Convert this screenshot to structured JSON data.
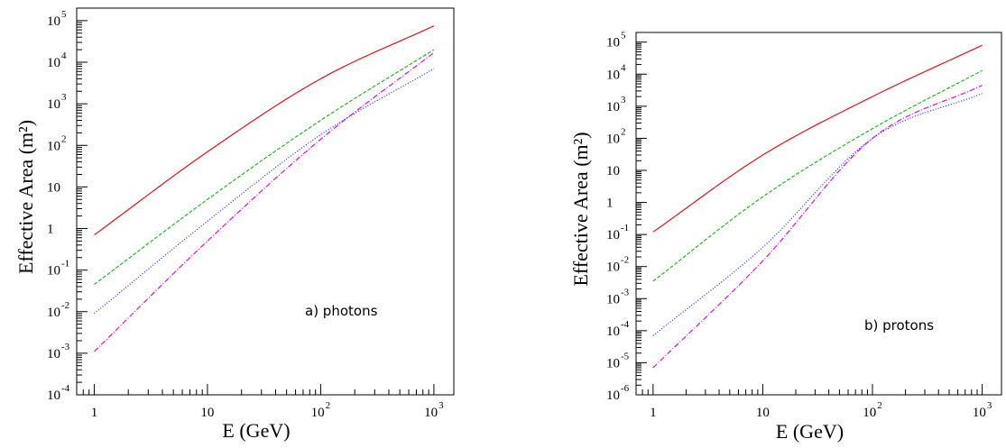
{
  "chart_data": [
    {
      "type": "line",
      "panel_label": "a) photons",
      "xlabel": "E (GeV)",
      "ylabel": "Effective Area (m²)",
      "xscale": "log",
      "yscale": "log",
      "xlim": [
        0.7,
        1500
      ],
      "ylim": [
        0.0001,
        200000
      ],
      "x_ticks": [
        {
          "base": "1",
          "exp": ""
        },
        {
          "base": "10",
          "exp": ""
        },
        {
          "base": "10",
          "exp": "2"
        },
        {
          "base": "10",
          "exp": "3"
        }
      ],
      "y_ticks": [
        {
          "base": "10",
          "exp": "-4"
        },
        {
          "base": "10",
          "exp": "-3"
        },
        {
          "base": "10",
          "exp": "-2"
        },
        {
          "base": "10",
          "exp": "-1"
        },
        {
          "base": "1",
          "exp": ""
        },
        {
          "base": "10",
          "exp": ""
        },
        {
          "base": "10",
          "exp": "2"
        },
        {
          "base": "10",
          "exp": "3"
        },
        {
          "base": "10",
          "exp": "4"
        },
        {
          "base": "10",
          "exp": "5"
        }
      ],
      "x": [
        1,
        10,
        100,
        1000
      ],
      "series": [
        {
          "color": "#e0141e",
          "style": "solid",
          "values": [
            0.7,
            70,
            4000,
            75000
          ]
        },
        {
          "color": "#22b422",
          "style": "dashed",
          "values": [
            0.045,
            5,
            400,
            20000
          ]
        },
        {
          "color": "#1428c8",
          "style": "dotted",
          "values": [
            0.009,
            1.5,
            180,
            7000
          ]
        },
        {
          "color": "#d214d2",
          "style": "dashdot",
          "values": [
            0.0011,
            0.5,
            140,
            17000
          ]
        }
      ]
    },
    {
      "type": "line",
      "panel_label": "b) protons",
      "xlabel": "E (GeV)",
      "ylabel": "Effective Area (m²)",
      "xscale": "log",
      "yscale": "log",
      "xlim": [
        0.7,
        1500
      ],
      "ylim": [
        1e-06,
        200000
      ],
      "x_ticks": [
        {
          "base": "1",
          "exp": ""
        },
        {
          "base": "10",
          "exp": ""
        },
        {
          "base": "10",
          "exp": "2"
        },
        {
          "base": "10",
          "exp": "3"
        }
      ],
      "y_ticks": [
        {
          "base": "10",
          "exp": "-6"
        },
        {
          "base": "10",
          "exp": "-5"
        },
        {
          "base": "10",
          "exp": "-4"
        },
        {
          "base": "10",
          "exp": "-3"
        },
        {
          "base": "10",
          "exp": "-2"
        },
        {
          "base": "10",
          "exp": "-1"
        },
        {
          "base": "1",
          "exp": ""
        },
        {
          "base": "10",
          "exp": ""
        },
        {
          "base": "10",
          "exp": "2"
        },
        {
          "base": "10",
          "exp": "3"
        },
        {
          "base": "10",
          "exp": "4"
        },
        {
          "base": "10",
          "exp": "5"
        }
      ],
      "x": [
        1,
        10,
        100,
        1000
      ],
      "series": [
        {
          "color": "#e0141e",
          "style": "solid",
          "values": [
            0.12,
            30,
            2000,
            80000
          ]
        },
        {
          "color": "#22b422",
          "style": "dashed",
          "values": [
            0.0035,
            1.5,
            200,
            13000
          ]
        },
        {
          "color": "#1428c8",
          "style": "dotted",
          "values": [
            7e-05,
            0.04,
            100,
            2500
          ]
        },
        {
          "color": "#d214d2",
          "style": "dashdot",
          "values": [
            7e-06,
            0.015,
            100,
            4500
          ]
        }
      ]
    }
  ]
}
